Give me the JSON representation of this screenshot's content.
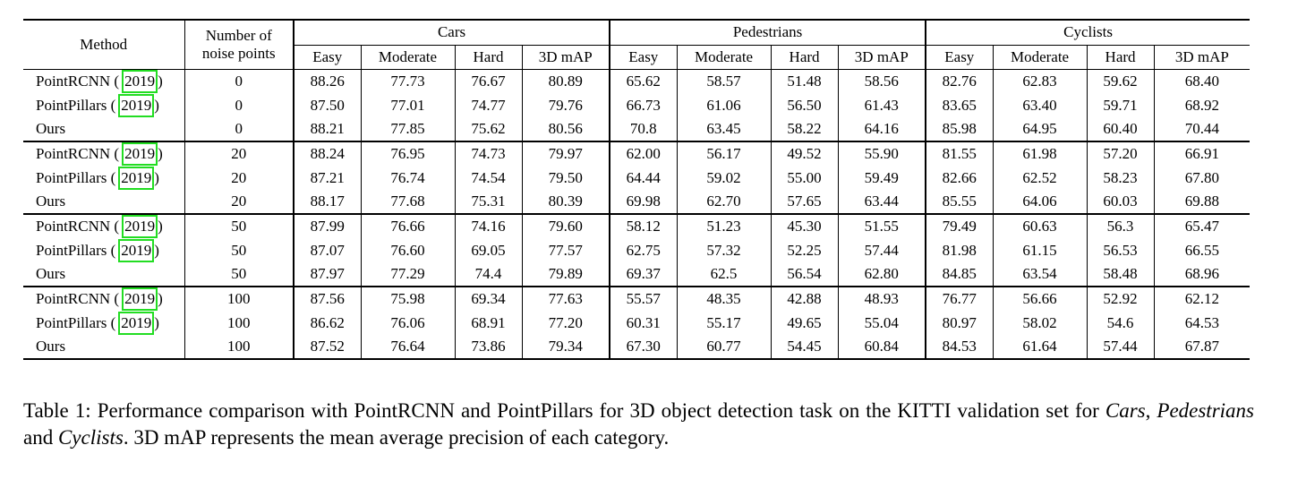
{
  "table": {
    "header": {
      "method": "Method",
      "noise_line1": "Number of",
      "noise_line2": "noise points",
      "groups": [
        "Cars",
        "Pedestrians",
        "Cyclists"
      ],
      "subcols": [
        "Easy",
        "Moderate",
        "Hard",
        "3D mAP"
      ]
    },
    "blocks": [
      {
        "rows": [
          {
            "method": "PointRCNN",
            "cite": "2019",
            "noise": "0",
            "values": [
              "88.26",
              "77.73",
              "76.67",
              "80.89",
              "65.62",
              "58.57",
              "51.48",
              "58.56",
              "82.76",
              "62.83",
              "59.62",
              "68.40"
            ],
            "bold": [
              3
            ]
          },
          {
            "method": "PointPillars",
            "cite": "2019",
            "noise": "0",
            "values": [
              "87.50",
              "77.01",
              "74.77",
              "79.76",
              "66.73",
              "61.06",
              "56.50",
              "61.43",
              "83.65",
              "63.40",
              "59.71",
              "68.92"
            ],
            "bold": []
          },
          {
            "method": "Ours",
            "cite": "",
            "noise": "0",
            "values": [
              "88.21",
              "77.85",
              "75.62",
              "80.56",
              "70.8",
              "63.45",
              "58.22",
              "64.16",
              "85.98",
              "64.95",
              "60.40",
              "70.44"
            ],
            "bold": [
              7,
              11
            ]
          }
        ]
      },
      {
        "rows": [
          {
            "method": "PointRCNN",
            "cite": "2019",
            "noise": "20",
            "values": [
              "88.24",
              "76.95",
              "74.73",
              "79.97",
              "62.00",
              "56.17",
              "49.52",
              "55.90",
              "81.55",
              "61.98",
              "57.20",
              "66.91"
            ],
            "bold": []
          },
          {
            "method": "PointPillars",
            "cite": "2019",
            "noise": "20",
            "values": [
              "87.21",
              "76.74",
              "74.54",
              "79.50",
              "64.44",
              "59.02",
              "55.00",
              "59.49",
              "82.66",
              "62.52",
              "58.23",
              "67.80"
            ],
            "bold": []
          },
          {
            "method": "Ours",
            "cite": "",
            "noise": "20",
            "values": [
              "88.17",
              "77.68",
              "75.31",
              "80.39",
              "69.98",
              "62.70",
              "57.65",
              "63.44",
              "85.55",
              "64.06",
              "60.03",
              "69.88"
            ],
            "bold": [
              3,
              7,
              11
            ]
          }
        ]
      },
      {
        "rows": [
          {
            "method": "PointRCNN",
            "cite": "2019",
            "noise": "50",
            "values": [
              "87.99",
              "76.66",
              "74.16",
              "79.60",
              "58.12",
              "51.23",
              "45.30",
              "51.55",
              "79.49",
              "60.63",
              "56.3",
              "65.47"
            ],
            "bold": []
          },
          {
            "method": "PointPillars",
            "cite": "2019",
            "noise": "50",
            "values": [
              "87.07",
              "76.60",
              "69.05",
              "77.57",
              "62.75",
              "57.32",
              "52.25",
              "57.44",
              "81.98",
              "61.15",
              "56.53",
              "66.55"
            ],
            "bold": []
          },
          {
            "method": "Ours",
            "cite": "",
            "noise": "50",
            "values": [
              "87.97",
              "77.29",
              "74.4",
              "79.89",
              "69.37",
              "62.5",
              "56.54",
              "62.80",
              "84.85",
              "63.54",
              "58.48",
              "68.96"
            ],
            "bold": [
              3,
              7,
              11
            ]
          }
        ]
      },
      {
        "rows": [
          {
            "method": "PointRCNN",
            "cite": "2019",
            "noise": "100",
            "values": [
              "87.56",
              "75.98",
              "69.34",
              "77.63",
              "55.57",
              "48.35",
              "42.88",
              "48.93",
              "76.77",
              "56.66",
              "52.92",
              "62.12"
            ],
            "bold": []
          },
          {
            "method": "PointPillars",
            "cite": "2019",
            "noise": "100",
            "values": [
              "86.62",
              "76.06",
              "68.91",
              "77.20",
              "60.31",
              "55.17",
              "49.65",
              "55.04",
              "80.97",
              "58.02",
              "54.6",
              "64.53"
            ],
            "bold": []
          },
          {
            "method": "Ours",
            "cite": "",
            "noise": "100",
            "values": [
              "87.52",
              "76.64",
              "73.86",
              "79.34",
              "67.30",
              "60.77",
              "54.45",
              "60.84",
              "84.53",
              "61.64",
              "57.44",
              "67.87"
            ],
            "bold": [
              3,
              7,
              11
            ]
          }
        ]
      }
    ]
  },
  "caption": {
    "prefix": "Table 1: Performance comparison with PointRCNN and PointPillars for 3D object detection task on the KITTI validation set for ",
    "cars": "Cars",
    "sep1": ", ",
    "pedestrians": "Pedestrians",
    "sep2": " and ",
    "cyclists": "Cyclists",
    "suffix": ". 3D mAP represents the mean average precision of each category."
  }
}
